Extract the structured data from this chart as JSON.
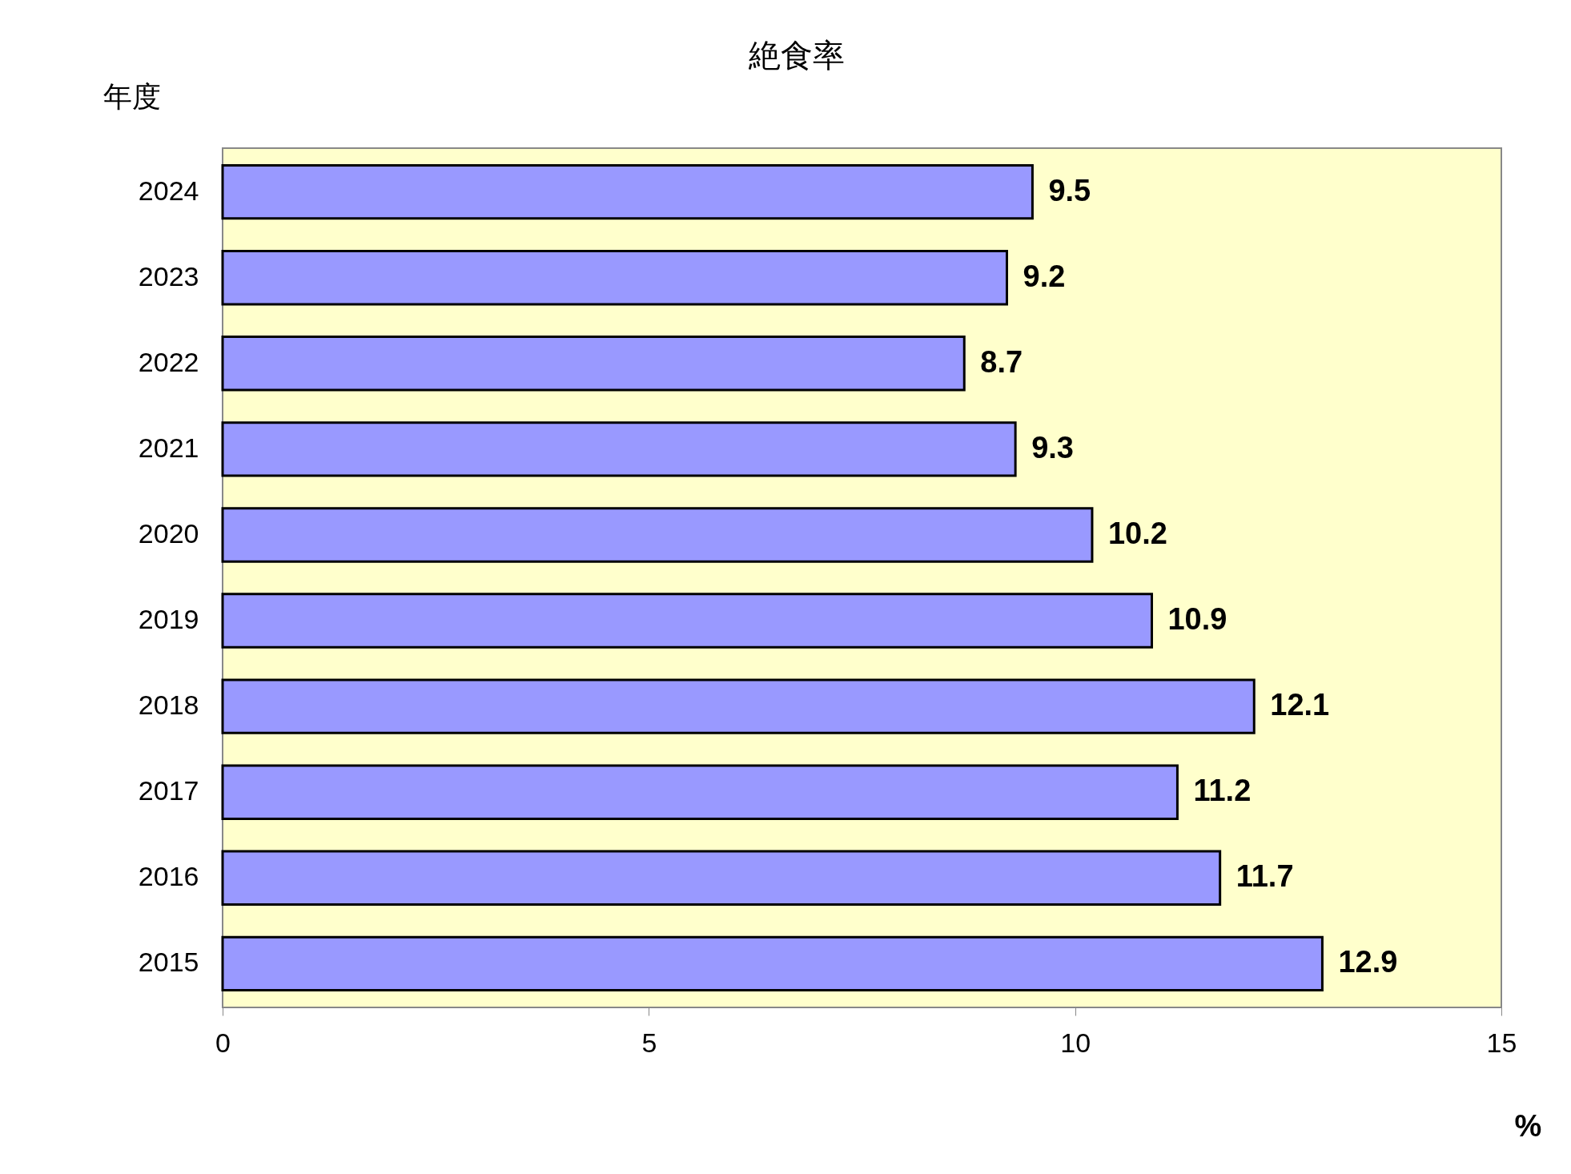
{
  "chart_data": {
    "type": "bar",
    "orientation": "horizontal",
    "title": "絶食率",
    "ylabel": "年度",
    "xlabel": "%",
    "categories": [
      "2024",
      "2023",
      "2022",
      "2021",
      "2020",
      "2019",
      "2018",
      "2017",
      "2016",
      "2015"
    ],
    "values": [
      9.5,
      9.2,
      8.7,
      9.3,
      10.2,
      10.9,
      12.1,
      11.2,
      11.7,
      12.9
    ],
    "color": "#9999ff",
    "xlim": [
      0,
      15
    ],
    "xticks": [
      0,
      5,
      10,
      15
    ],
    "data_labels": true,
    "grid": false
  }
}
